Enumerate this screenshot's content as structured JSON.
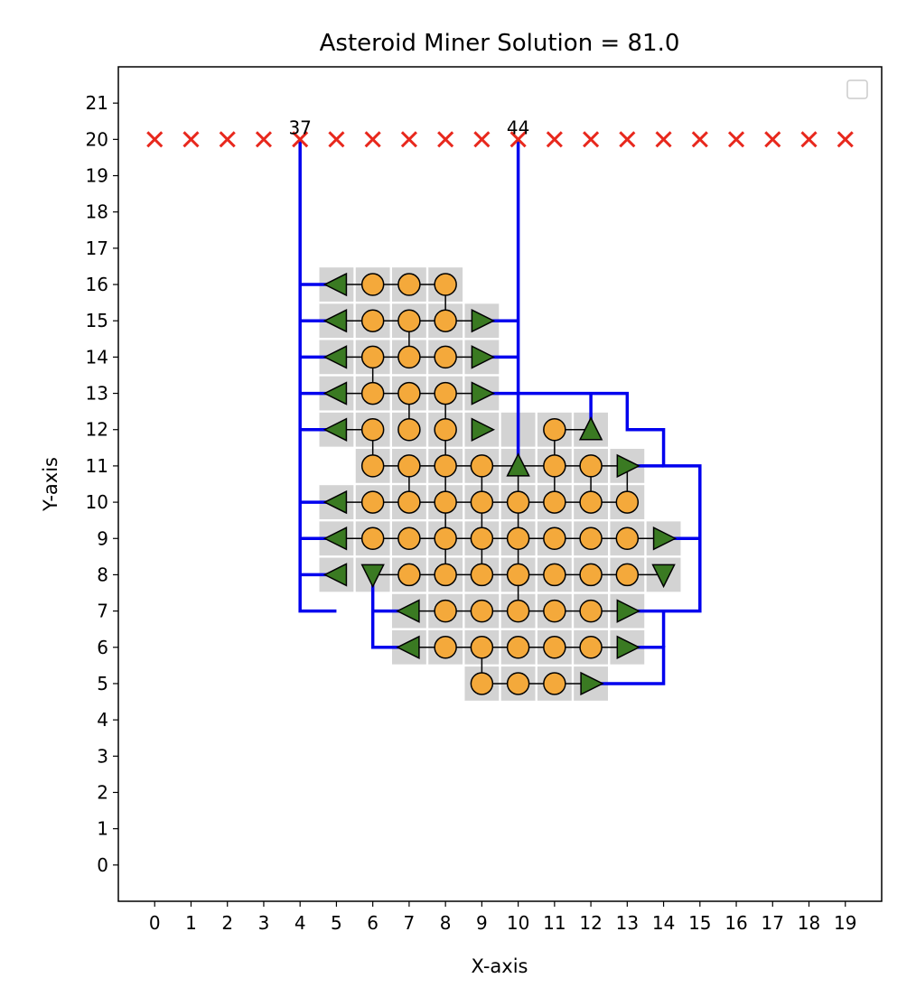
{
  "chart_data": {
    "type": "scatter",
    "title": "Asteroid Miner Solution = 81.0",
    "xlabel": "X-axis",
    "ylabel": "Y-axis",
    "xlim": [
      -1,
      20
    ],
    "ylim": [
      -1,
      22
    ],
    "xticks": [
      0,
      1,
      2,
      3,
      4,
      5,
      6,
      7,
      8,
      9,
      10,
      11,
      12,
      13,
      14,
      15,
      16,
      17,
      18,
      19
    ],
    "yticks": [
      0,
      1,
      2,
      3,
      4,
      5,
      6,
      7,
      8,
      9,
      10,
      11,
      12,
      13,
      14,
      15,
      16,
      17,
      18,
      19,
      20,
      21
    ],
    "grid": false,
    "legend": "top-right (empty)",
    "colors": {
      "cell": "#d3d3d3",
      "node": "#f4a93b",
      "arrow": "#3a7a22",
      "path": "#0000ee",
      "marker": "#e8281d",
      "link": "#000000"
    },
    "markers": {
      "y": 20,
      "x": [
        0,
        1,
        2,
        3,
        4,
        5,
        6,
        7,
        8,
        9,
        10,
        11,
        12,
        13,
        14,
        15,
        16,
        17,
        18,
        19
      ]
    },
    "annotations": [
      {
        "text": "37",
        "x": 4,
        "y": 20
      },
      {
        "text": "44",
        "x": 10,
        "y": 20
      }
    ],
    "cells": [
      [
        5,
        16
      ],
      [
        6,
        16
      ],
      [
        7,
        16
      ],
      [
        8,
        16
      ],
      [
        5,
        15
      ],
      [
        6,
        15
      ],
      [
        7,
        15
      ],
      [
        8,
        15
      ],
      [
        9,
        15
      ],
      [
        5,
        14
      ],
      [
        6,
        14
      ],
      [
        7,
        14
      ],
      [
        8,
        14
      ],
      [
        9,
        14
      ],
      [
        5,
        13
      ],
      [
        6,
        13
      ],
      [
        7,
        13
      ],
      [
        8,
        13
      ],
      [
        9,
        13
      ],
      [
        5,
        12
      ],
      [
        6,
        12
      ],
      [
        7,
        12
      ],
      [
        8,
        12
      ],
      [
        9,
        12
      ],
      [
        10,
        12
      ],
      [
        11,
        12
      ],
      [
        12,
        12
      ],
      [
        6,
        11
      ],
      [
        7,
        11
      ],
      [
        8,
        11
      ],
      [
        9,
        11
      ],
      [
        10,
        11
      ],
      [
        11,
        11
      ],
      [
        12,
        11
      ],
      [
        13,
        11
      ],
      [
        5,
        10
      ],
      [
        6,
        10
      ],
      [
        7,
        10
      ],
      [
        8,
        10
      ],
      [
        9,
        10
      ],
      [
        10,
        10
      ],
      [
        11,
        10
      ],
      [
        12,
        10
      ],
      [
        13,
        10
      ],
      [
        5,
        9
      ],
      [
        6,
        9
      ],
      [
        7,
        9
      ],
      [
        8,
        9
      ],
      [
        9,
        9
      ],
      [
        10,
        9
      ],
      [
        11,
        9
      ],
      [
        12,
        9
      ],
      [
        13,
        9
      ],
      [
        14,
        9
      ],
      [
        5,
        8
      ],
      [
        6,
        8
      ],
      [
        7,
        8
      ],
      [
        8,
        8
      ],
      [
        9,
        8
      ],
      [
        10,
        8
      ],
      [
        11,
        8
      ],
      [
        12,
        8
      ],
      [
        13,
        8
      ],
      [
        14,
        8
      ],
      [
        7,
        7
      ],
      [
        8,
        7
      ],
      [
        9,
        7
      ],
      [
        10,
        7
      ],
      [
        11,
        7
      ],
      [
        12,
        7
      ],
      [
        13,
        7
      ],
      [
        7,
        6
      ],
      [
        8,
        6
      ],
      [
        9,
        6
      ],
      [
        10,
        6
      ],
      [
        11,
        6
      ],
      [
        12,
        6
      ],
      [
        13,
        6
      ],
      [
        9,
        5
      ],
      [
        10,
        5
      ],
      [
        11,
        5
      ],
      [
        12,
        5
      ]
    ],
    "nodes": [
      [
        6,
        16
      ],
      [
        7,
        16
      ],
      [
        8,
        16
      ],
      [
        6,
        15
      ],
      [
        7,
        15
      ],
      [
        8,
        15
      ],
      [
        6,
        14
      ],
      [
        7,
        14
      ],
      [
        8,
        14
      ],
      [
        6,
        13
      ],
      [
        7,
        13
      ],
      [
        8,
        13
      ],
      [
        6,
        12
      ],
      [
        7,
        12
      ],
      [
        8,
        12
      ],
      [
        11,
        12
      ],
      [
        6,
        11
      ],
      [
        7,
        11
      ],
      [
        8,
        11
      ],
      [
        9,
        11
      ],
      [
        11,
        11
      ],
      [
        12,
        11
      ],
      [
        6,
        10
      ],
      [
        7,
        10
      ],
      [
        8,
        10
      ],
      [
        9,
        10
      ],
      [
        10,
        10
      ],
      [
        11,
        10
      ],
      [
        12,
        10
      ],
      [
        13,
        10
      ],
      [
        6,
        9
      ],
      [
        7,
        9
      ],
      [
        8,
        9
      ],
      [
        9,
        9
      ],
      [
        10,
        9
      ],
      [
        11,
        9
      ],
      [
        12,
        9
      ],
      [
        13,
        9
      ],
      [
        7,
        8
      ],
      [
        8,
        8
      ],
      [
        9,
        8
      ],
      [
        10,
        8
      ],
      [
        11,
        8
      ],
      [
        12,
        8
      ],
      [
        13,
        8
      ],
      [
        8,
        7
      ],
      [
        9,
        7
      ],
      [
        10,
        7
      ],
      [
        11,
        7
      ],
      [
        12,
        7
      ],
      [
        8,
        6
      ],
      [
        9,
        6
      ],
      [
        10,
        6
      ],
      [
        11,
        6
      ],
      [
        12,
        6
      ],
      [
        9,
        5
      ],
      [
        10,
        5
      ],
      [
        11,
        5
      ]
    ],
    "arrows": [
      {
        "x": 5,
        "y": 16,
        "dir": "left"
      },
      {
        "x": 5,
        "y": 15,
        "dir": "left"
      },
      {
        "x": 9,
        "y": 15,
        "dir": "right"
      },
      {
        "x": 5,
        "y": 14,
        "dir": "left"
      },
      {
        "x": 9,
        "y": 14,
        "dir": "right"
      },
      {
        "x": 5,
        "y": 13,
        "dir": "left"
      },
      {
        "x": 9,
        "y": 13,
        "dir": "right"
      },
      {
        "x": 5,
        "y": 12,
        "dir": "left"
      },
      {
        "x": 9,
        "y": 12,
        "dir": "right"
      },
      {
        "x": 12,
        "y": 12,
        "dir": "up"
      },
      {
        "x": 10,
        "y": 11,
        "dir": "up"
      },
      {
        "x": 13,
        "y": 11,
        "dir": "right"
      },
      {
        "x": 5,
        "y": 10,
        "dir": "left"
      },
      {
        "x": 5,
        "y": 9,
        "dir": "left"
      },
      {
        "x": 14,
        "y": 9,
        "dir": "right"
      },
      {
        "x": 5,
        "y": 8,
        "dir": "left"
      },
      {
        "x": 6,
        "y": 8,
        "dir": "down"
      },
      {
        "x": 14,
        "y": 8,
        "dir": "down"
      },
      {
        "x": 7,
        "y": 7,
        "dir": "left"
      },
      {
        "x": 13,
        "y": 7,
        "dir": "right"
      },
      {
        "x": 7,
        "y": 6,
        "dir": "left"
      },
      {
        "x": 13,
        "y": 6,
        "dir": "right"
      },
      {
        "x": 12,
        "y": 5,
        "dir": "right"
      }
    ],
    "links": [
      [
        [
          5,
          16
        ],
        [
          8,
          16
        ]
      ],
      [
        [
          5,
          15
        ],
        [
          9,
          15
        ]
      ],
      [
        [
          5,
          14
        ],
        [
          9,
          14
        ]
      ],
      [
        [
          5,
          13
        ],
        [
          9,
          13
        ]
      ],
      [
        [
          5,
          12
        ],
        [
          6,
          12
        ]
      ],
      [
        [
          9,
          12
        ],
        [
          9,
          12
        ]
      ],
      [
        [
          11,
          12
        ],
        [
          12,
          12
        ]
      ],
      [
        [
          6,
          11
        ],
        [
          13,
          11
        ]
      ],
      [
        [
          5,
          10
        ],
        [
          13,
          10
        ]
      ],
      [
        [
          5,
          9
        ],
        [
          14,
          9
        ]
      ],
      [
        [
          6,
          8
        ],
        [
          14,
          8
        ]
      ],
      [
        [
          7,
          7
        ],
        [
          13,
          7
        ]
      ],
      [
        [
          7,
          6
        ],
        [
          13,
          6
        ]
      ],
      [
        [
          9,
          5
        ],
        [
          12,
          5
        ]
      ],
      [
        [
          6,
          13
        ],
        [
          6,
          14
        ]
      ],
      [
        [
          6,
          11
        ],
        [
          6,
          12
        ]
      ],
      [
        [
          7,
          14
        ],
        [
          7,
          15
        ]
      ],
      [
        [
          7,
          12
        ],
        [
          7,
          13
        ]
      ],
      [
        [
          7,
          10
        ],
        [
          7,
          11
        ]
      ],
      [
        [
          8,
          15
        ],
        [
          8,
          16
        ]
      ],
      [
        [
          8,
          8
        ],
        [
          8,
          13
        ]
      ],
      [
        [
          9,
          8
        ],
        [
          9,
          11
        ]
      ],
      [
        [
          9,
          5
        ],
        [
          9,
          6
        ]
      ],
      [
        [
          10,
          7
        ],
        [
          10,
          11
        ]
      ],
      [
        [
          11,
          10
        ],
        [
          11,
          12
        ]
      ],
      [
        [
          12,
          10
        ],
        [
          12,
          11
        ]
      ],
      [
        [
          13,
          10
        ],
        [
          13,
          11
        ]
      ]
    ],
    "paths": [
      [
        [
          4,
          20
        ],
        [
          4,
          7
        ],
        [
          5,
          7
        ]
      ],
      [
        [
          4,
          16
        ],
        [
          5,
          16
        ]
      ],
      [
        [
          4,
          15
        ],
        [
          5,
          15
        ]
      ],
      [
        [
          4,
          14
        ],
        [
          5,
          14
        ]
      ],
      [
        [
          4,
          13
        ],
        [
          5,
          13
        ]
      ],
      [
        [
          4,
          12
        ],
        [
          5,
          12
        ]
      ],
      [
        [
          4,
          10
        ],
        [
          5,
          10
        ]
      ],
      [
        [
          4,
          9
        ],
        [
          5,
          9
        ]
      ],
      [
        [
          4,
          8
        ],
        [
          5,
          8
        ]
      ],
      [
        [
          6,
          8
        ],
        [
          6,
          6
        ],
        [
          7,
          6
        ]
      ],
      [
        [
          6,
          7
        ],
        [
          7,
          7
        ]
      ],
      [
        [
          10,
          20
        ],
        [
          10,
          11
        ]
      ],
      [
        [
          9,
          15
        ],
        [
          10,
          15
        ]
      ],
      [
        [
          9,
          14
        ],
        [
          10,
          14
        ]
      ],
      [
        [
          9,
          13
        ],
        [
          13,
          13
        ],
        [
          13,
          12
        ],
        [
          14,
          12
        ],
        [
          14,
          11
        ],
        [
          15,
          11
        ],
        [
          15,
          7
        ],
        [
          13,
          7
        ]
      ],
      [
        [
          12,
          13
        ],
        [
          12,
          12
        ]
      ],
      [
        [
          13,
          11
        ],
        [
          14,
          11
        ]
      ],
      [
        [
          14,
          9
        ],
        [
          15,
          9
        ]
      ],
      [
        [
          13,
          6
        ],
        [
          14,
          6
        ],
        [
          14,
          5
        ],
        [
          12,
          5
        ]
      ],
      [
        [
          14,
          7
        ],
        [
          14,
          6
        ]
      ]
    ]
  }
}
